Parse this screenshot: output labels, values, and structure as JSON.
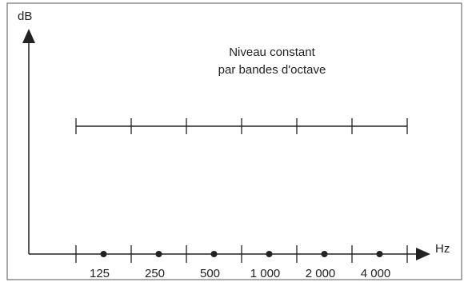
{
  "figure": {
    "annotation_line1": "Niveau constant",
    "annotation_line2": "par bandes d'octave"
  },
  "chart_data": {
    "type": "line",
    "ylabel": "dB",
    "xlabel": "Hz",
    "categories": [
      "125",
      "250",
      "500",
      "1 000",
      "2 000",
      "4 000"
    ],
    "series": [
      {
        "values": [
          1,
          1,
          1,
          1,
          1,
          1
        ]
      }
    ],
    "colors": {
      "ink": "#222222",
      "frame": "#555555"
    }
  }
}
